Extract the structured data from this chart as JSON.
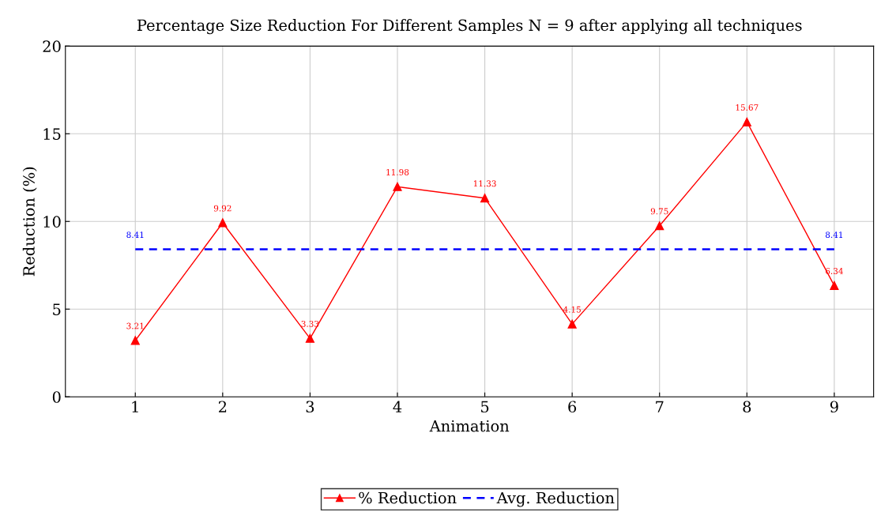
{
  "chart_data": {
    "type": "line",
    "title": "Percentage Size Reduction For Different Samples N = 9 after applying all techniques",
    "xlabel": "Animation",
    "ylabel": "Reduction (%)",
    "x": [
      1,
      2,
      3,
      4,
      5,
      6,
      7,
      8,
      9
    ],
    "series": [
      {
        "name": "% Reduction",
        "color": "#ff0000",
        "marker": "triangle",
        "line_style": "solid",
        "values": [
          3.21,
          9.92,
          3.33,
          11.98,
          11.33,
          4.15,
          9.75,
          15.67,
          6.34
        ]
      },
      {
        "name": "Avg. Reduction",
        "color": "#0000ff",
        "marker": "none",
        "line_style": "dashed",
        "x": [
          1,
          9
        ],
        "values": [
          8.41,
          8.41
        ]
      }
    ],
    "data_labels": true,
    "xlim": [
      0.2,
      9.45
    ],
    "xticks": [
      1,
      2,
      3,
      4,
      5,
      6,
      7,
      8,
      9
    ],
    "ylim": [
      0,
      20
    ],
    "yticks": [
      0,
      5,
      10,
      15,
      20
    ],
    "grid": true,
    "legend": "bottom"
  }
}
